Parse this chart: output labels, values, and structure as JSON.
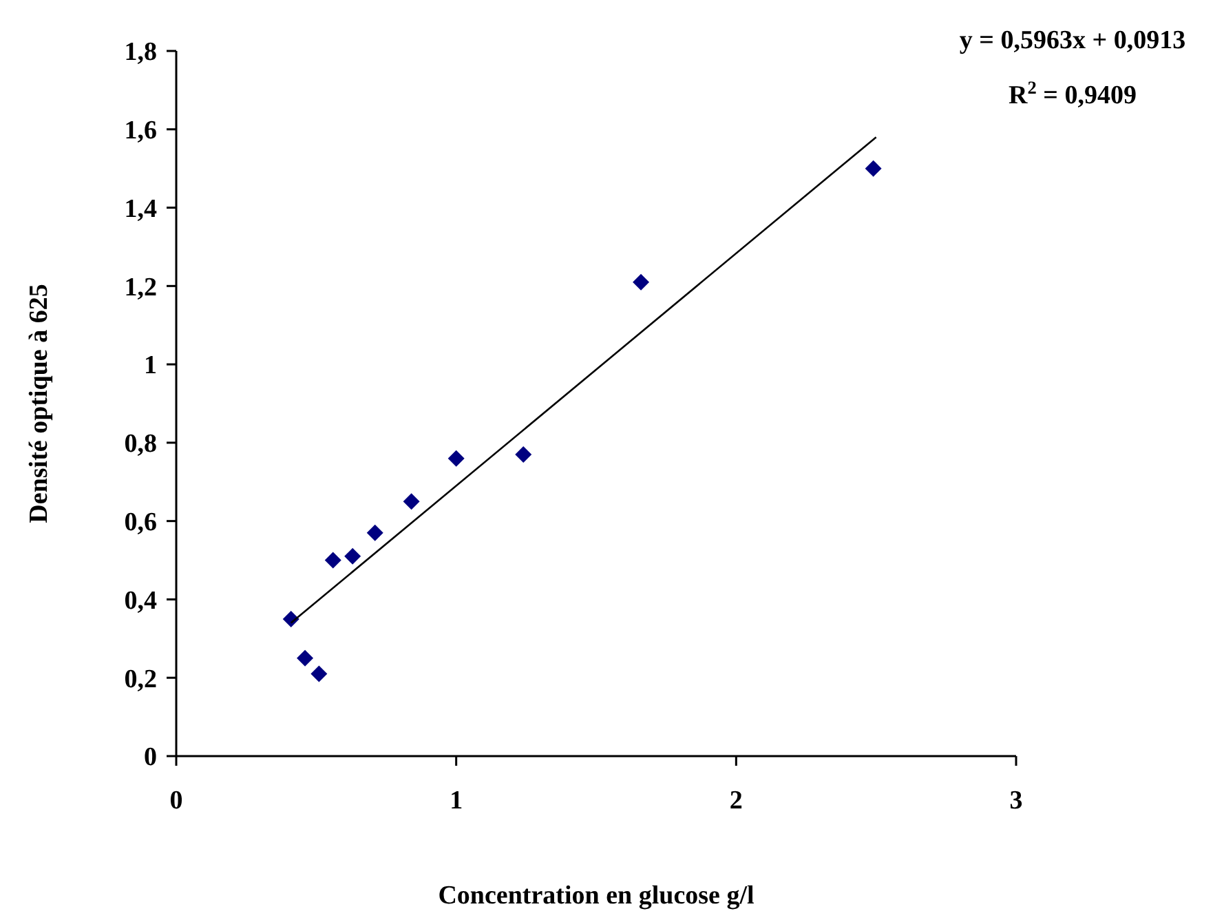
{
  "chart_data": {
    "type": "scatter",
    "xlabel": "Concentration en glucose g/l",
    "ylabel": "Densité optique à 625",
    "xlim": [
      0,
      3
    ],
    "xticks": [
      0,
      1,
      2,
      3
    ],
    "ylim": [
      0,
      1.8
    ],
    "yticks": [
      0,
      {
        "value": 0.2,
        "label": "0,2"
      },
      {
        "value": 0.4,
        "label": "0,4"
      },
      {
        "value": 0.6,
        "label": "0,6"
      },
      {
        "value": 0.8,
        "label": "0,8"
      },
      1,
      {
        "value": 1.2,
        "label": "1,2"
      },
      {
        "value": 1.4,
        "label": "1,4"
      },
      {
        "value": 1.6,
        "label": "1,6"
      },
      {
        "value": 1.8,
        "label": "1,8"
      }
    ],
    "grid": false,
    "annotations": [
      "y = 0,5963x + 0,0913",
      "R$^{2}$ = 0,9409"
    ],
    "series": [
      {
        "color": "#000080",
        "marker": "diamond",
        "x": [
          0.41,
          0.46,
          0.51,
          0.56,
          0.63,
          0.71,
          0.84,
          1.0,
          1.24,
          1.66,
          2.49
        ],
        "values": [
          0.35,
          0.25,
          0.21,
          0.5,
          0.51,
          0.57,
          0.65,
          0.76,
          0.77,
          1.21,
          1.5
        ]
      },
      {
        "type": "line",
        "color": "#000000",
        "line_style": "solid",
        "marker": "none",
        "x": [
          0.41,
          2.5
        ],
        "values": [
          0.34,
          1.58
        ]
      }
    ]
  }
}
